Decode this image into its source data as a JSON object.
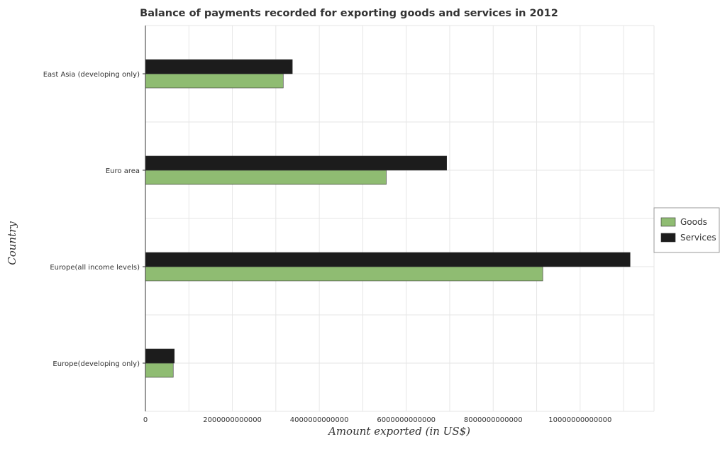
{
  "colors": {
    "goods_fill": "#8fbc72",
    "services_fill": "#1c1c1c",
    "grid": "#e6e6e6",
    "axis": "#333333"
  },
  "chart_data": {
    "type": "bar",
    "orientation": "horizontal",
    "title": "Balance of payments recorded for exporting goods and services in 2012",
    "xlabel": "Amount exported (in US$)",
    "ylabel": "Country",
    "categories": [
      "East Asia (developing only)",
      "Euro area",
      "Europe(all income levels)",
      "Europe(developing only)"
    ],
    "series": [
      {
        "name": "Goods",
        "values": [
          3170000000000,
          5540000000000,
          9140000000000,
          640000000000
        ]
      },
      {
        "name": "Services",
        "values": [
          3380000000000,
          6930000000000,
          11150000000000,
          665000000000
        ]
      }
    ],
    "xlim": [
      0,
      11700000000000
    ],
    "xticks": [
      0,
      2000000000000,
      4000000000000,
      6000000000000,
      8000000000000,
      10000000000000
    ],
    "xtick_labels": [
      "0",
      "2000000000000",
      "4000000000000",
      "6000000000000",
      "8000000000000",
      "10000000000000"
    ],
    "grid": true,
    "legend_position": "right"
  }
}
